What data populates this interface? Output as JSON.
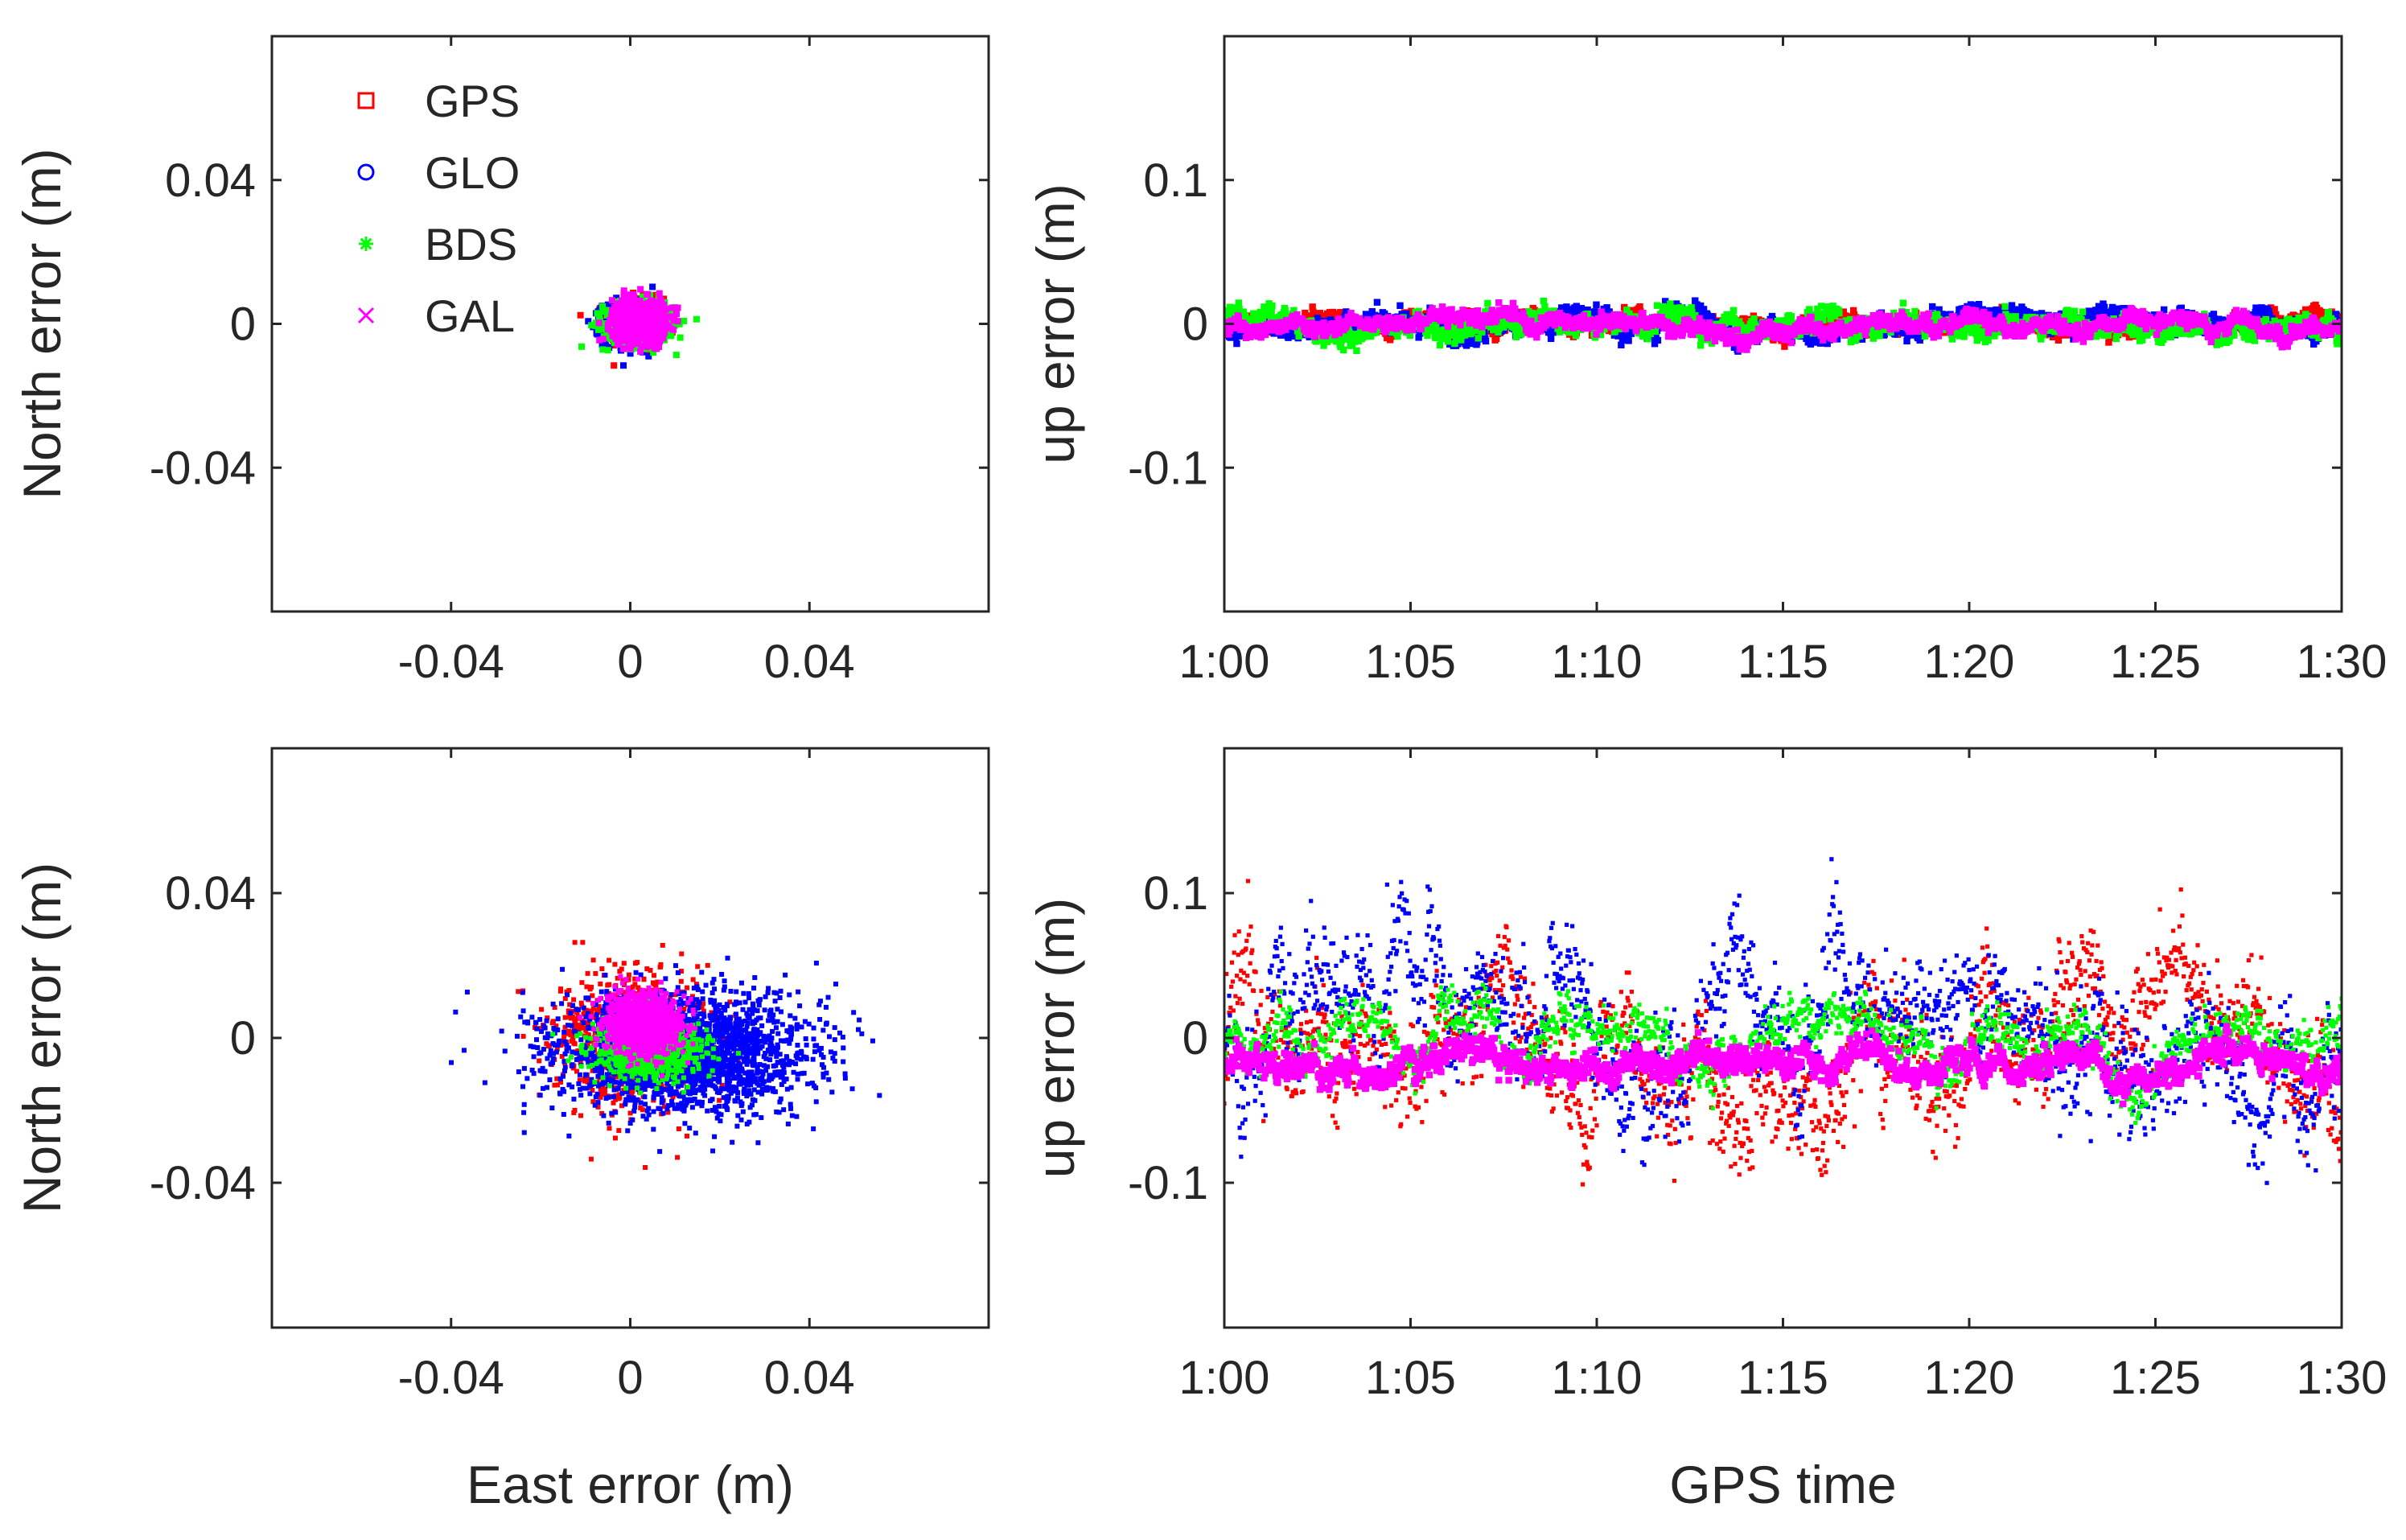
{
  "chart_data": [
    {
      "type": "scatter",
      "panel": "top-left",
      "title": "",
      "xlabel": "",
      "ylabel": "North error (m)",
      "xlim": [
        -0.08,
        0.08
      ],
      "ylim": [
        -0.08,
        0.08
      ],
      "xticks": [
        -0.04,
        0,
        0.04
      ],
      "xtick_labels": [
        "-0.04",
        "0",
        "0.04"
      ],
      "yticks": [
        -0.04,
        0,
        0.04
      ],
      "ytick_labels": [
        "-0.04",
        "0",
        "0.04"
      ],
      "legend": {
        "location": "top-left",
        "entries": [
          {
            "label": "GPS",
            "marker": "square",
            "color": "#ff0000"
          },
          {
            "label": "GLO",
            "marker": "circle",
            "color": "#0000ff"
          },
          {
            "label": "BDS",
            "marker": "asterisk",
            "color": "#00ff00"
          },
          {
            "label": "GAL",
            "marker": "x",
            "color": "#ff00ff"
          }
        ]
      },
      "series": [
        {
          "name": "GPS",
          "color": "#ff0000",
          "marker": "square",
          "center": [
            0.001,
            0.001
          ],
          "spread": [
            0.003,
            0.003
          ],
          "points": 500
        },
        {
          "name": "GLO",
          "color": "#0000ff",
          "marker": "circle",
          "center": [
            0.0,
            0.0
          ],
          "spread": [
            0.003,
            0.003
          ],
          "points": 500
        },
        {
          "name": "BDS",
          "color": "#00ff00",
          "marker": "asterisk",
          "center": [
            0.002,
            0.0
          ],
          "spread": [
            0.004,
            0.003
          ],
          "points": 500
        },
        {
          "name": "GAL",
          "color": "#ff00ff",
          "marker": "x",
          "center": [
            0.002,
            0.001
          ],
          "spread": [
            0.003,
            0.003
          ],
          "points": 700
        }
      ]
    },
    {
      "type": "scatter",
      "panel": "top-right",
      "title": "",
      "xlabel": "",
      "ylabel": "up error (m)",
      "xlim": [
        0,
        30
      ],
      "ylim": [
        -0.2,
        0.2
      ],
      "xticks": [
        0,
        5,
        10,
        15,
        20,
        25,
        30
      ],
      "xtick_labels": [
        "1:00",
        "1:05",
        "1:10",
        "1:15",
        "1:20",
        "1:25",
        "1:30"
      ],
      "yticks": [
        -0.1,
        0,
        0.1
      ],
      "ytick_labels": [
        "-0.1",
        "0",
        "0.1"
      ],
      "series": [
        {
          "name": "GPS",
          "color": "#ff0000",
          "mean": 0.0,
          "noise": 0.004,
          "points": 1800
        },
        {
          "name": "GLO",
          "color": "#0000ff",
          "mean": 0.0,
          "noise": 0.005,
          "points": 1800
        },
        {
          "name": "BDS",
          "color": "#00ff00",
          "mean": 0.0,
          "noise": 0.005,
          "points": 1800
        },
        {
          "name": "GAL",
          "color": "#ff00ff",
          "mean": 0.0,
          "noise": 0.004,
          "points": 1800
        }
      ]
    },
    {
      "type": "scatter",
      "panel": "bottom-left",
      "title": "",
      "xlabel": "East error (m)",
      "ylabel": "North error (m)",
      "xlim": [
        -0.08,
        0.08
      ],
      "ylim": [
        -0.08,
        0.08
      ],
      "xticks": [
        -0.04,
        0,
        0.04
      ],
      "xtick_labels": [
        "-0.04",
        "0",
        "0.04"
      ],
      "yticks": [
        -0.04,
        0,
        0.04
      ],
      "ytick_labels": [
        "-0.04",
        "0",
        "0.04"
      ],
      "series": [
        {
          "name": "GPS",
          "color": "#ff0000",
          "center": [
            0.0,
            0.0
          ],
          "spread": [
            0.008,
            0.009
          ],
          "points": 900
        },
        {
          "name": "GLO",
          "color": "#0000ff",
          "center": [
            0.012,
            -0.004
          ],
          "spread": [
            0.014,
            0.008
          ],
          "points": 2200
        },
        {
          "name": "BDS",
          "color": "#00ff00",
          "center": [
            0.004,
            -0.003
          ],
          "spread": [
            0.006,
            0.004
          ],
          "points": 900
        },
        {
          "name": "GAL",
          "color": "#ff00ff",
          "center": [
            0.003,
            0.004
          ],
          "spread": [
            0.004,
            0.004
          ],
          "points": 1200
        }
      ]
    },
    {
      "type": "scatter",
      "panel": "bottom-right",
      "title": "",
      "xlabel": "GPS time",
      "ylabel": "up error (m)",
      "xlim": [
        0,
        30
      ],
      "ylim": [
        -0.2,
        0.2
      ],
      "xticks": [
        0,
        5,
        10,
        15,
        20,
        25,
        30
      ],
      "xtick_labels": [
        "1:00",
        "1:05",
        "1:10",
        "1:15",
        "1:20",
        "1:25",
        "1:30"
      ],
      "yticks": [
        -0.1,
        0,
        0.1
      ],
      "ytick_labels": [
        "-0.1",
        "0",
        "0.1"
      ],
      "series": [
        {
          "name": "GPS",
          "color": "#ff0000",
          "mean": -0.005,
          "noise": 0.028,
          "points": 1600
        },
        {
          "name": "GLO",
          "color": "#0000ff",
          "mean": -0.002,
          "noise": 0.03,
          "points": 1600
        },
        {
          "name": "BDS",
          "color": "#00ff00",
          "mean": -0.005,
          "noise": 0.012,
          "points": 1600
        },
        {
          "name": "GAL",
          "color": "#ff00ff",
          "mean": -0.018,
          "noise": 0.007,
          "points": 1800
        }
      ]
    }
  ]
}
